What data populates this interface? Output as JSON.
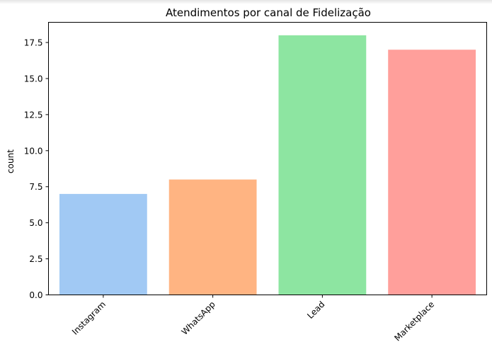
{
  "chart_data": {
    "type": "bar",
    "title": "Atendimentos por canal de Fidelização",
    "xlabel": "",
    "ylabel": "count",
    "categories": [
      "Instagram",
      "WhatsApp",
      "Lead",
      "Marketplace"
    ],
    "values": [
      7,
      8,
      18,
      17
    ],
    "colors": [
      "#a1c9f4",
      "#ffb482",
      "#8de5a1",
      "#ff9f9b"
    ],
    "ylim": [
      0,
      18.9
    ],
    "yticks": [
      "0.0",
      "2.5",
      "5.0",
      "7.5",
      "10.0",
      "12.5",
      "15.0",
      "17.5"
    ],
    "grid": false,
    "legend": "none"
  }
}
